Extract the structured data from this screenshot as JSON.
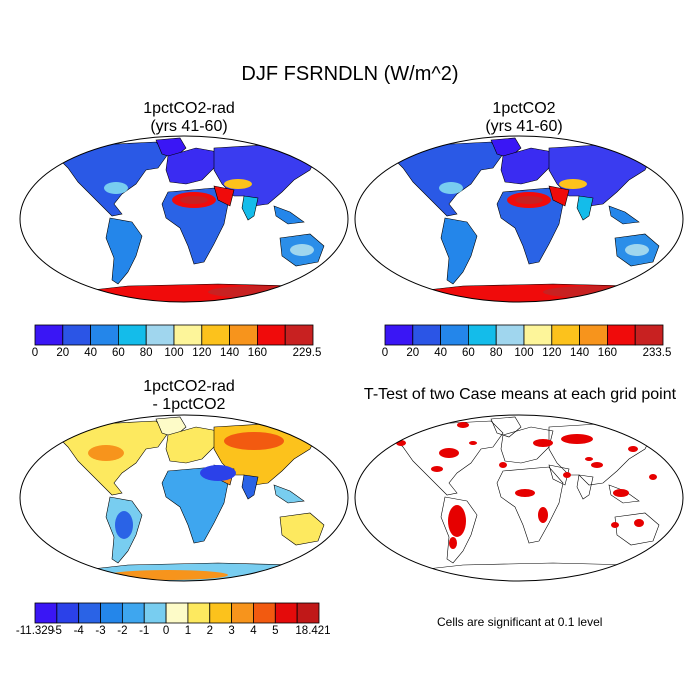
{
  "figure": {
    "title": "DJF FSRNDLN (W/m^2)",
    "note": "Cells are significant at 0.1 level"
  },
  "panels": [
    {
      "title_line1": "1pctCO2-rad",
      "title_line2": "(yrs 41-60)",
      "colorbar": {
        "colors": [
          "#3a16f5",
          "#2b55e6",
          "#2486ea",
          "#14bcea",
          "#a0d6ee",
          "#fdf59a",
          "#fcc21c",
          "#f7941c",
          "#f00b0b",
          "#c82121"
        ],
        "labels": [
          "0",
          "20",
          "40",
          "60",
          "80",
          "100",
          "120",
          "140",
          "160",
          "229.5"
        ]
      }
    },
    {
      "title_line1": "1pctCO2",
      "title_line2": "(yrs 41-60)",
      "colorbar": {
        "colors": [
          "#3a16f5",
          "#2b55e6",
          "#2486ea",
          "#14bcea",
          "#a0d6ee",
          "#fdf59a",
          "#fcc21c",
          "#f7941c",
          "#f00b0b",
          "#c82121"
        ],
        "labels": [
          "0",
          "20",
          "40",
          "60",
          "80",
          "100",
          "120",
          "140",
          "160",
          "233.5"
        ]
      }
    },
    {
      "title_line1": "1pctCO2-rad",
      "title_line2": "- 1pctCO2",
      "colorbar": {
        "colors": [
          "#3a16f5",
          "#2b41e9",
          "#2a63e6",
          "#2486ea",
          "#3ea6ef",
          "#78cdf0",
          "#fdfbc8",
          "#fde95f",
          "#fcc21c",
          "#f7941c",
          "#f25a10",
          "#e40b0b",
          "#c01818"
        ],
        "labels": [
          "-11.329",
          "-5",
          "-4",
          "-3",
          "-2",
          "-1",
          "0",
          "1",
          "2",
          "3",
          "4",
          "5",
          "18.421"
        ]
      }
    },
    {
      "title_line1": "T-Test of two Case means at each grid point",
      "title_line2": ""
    }
  ]
}
